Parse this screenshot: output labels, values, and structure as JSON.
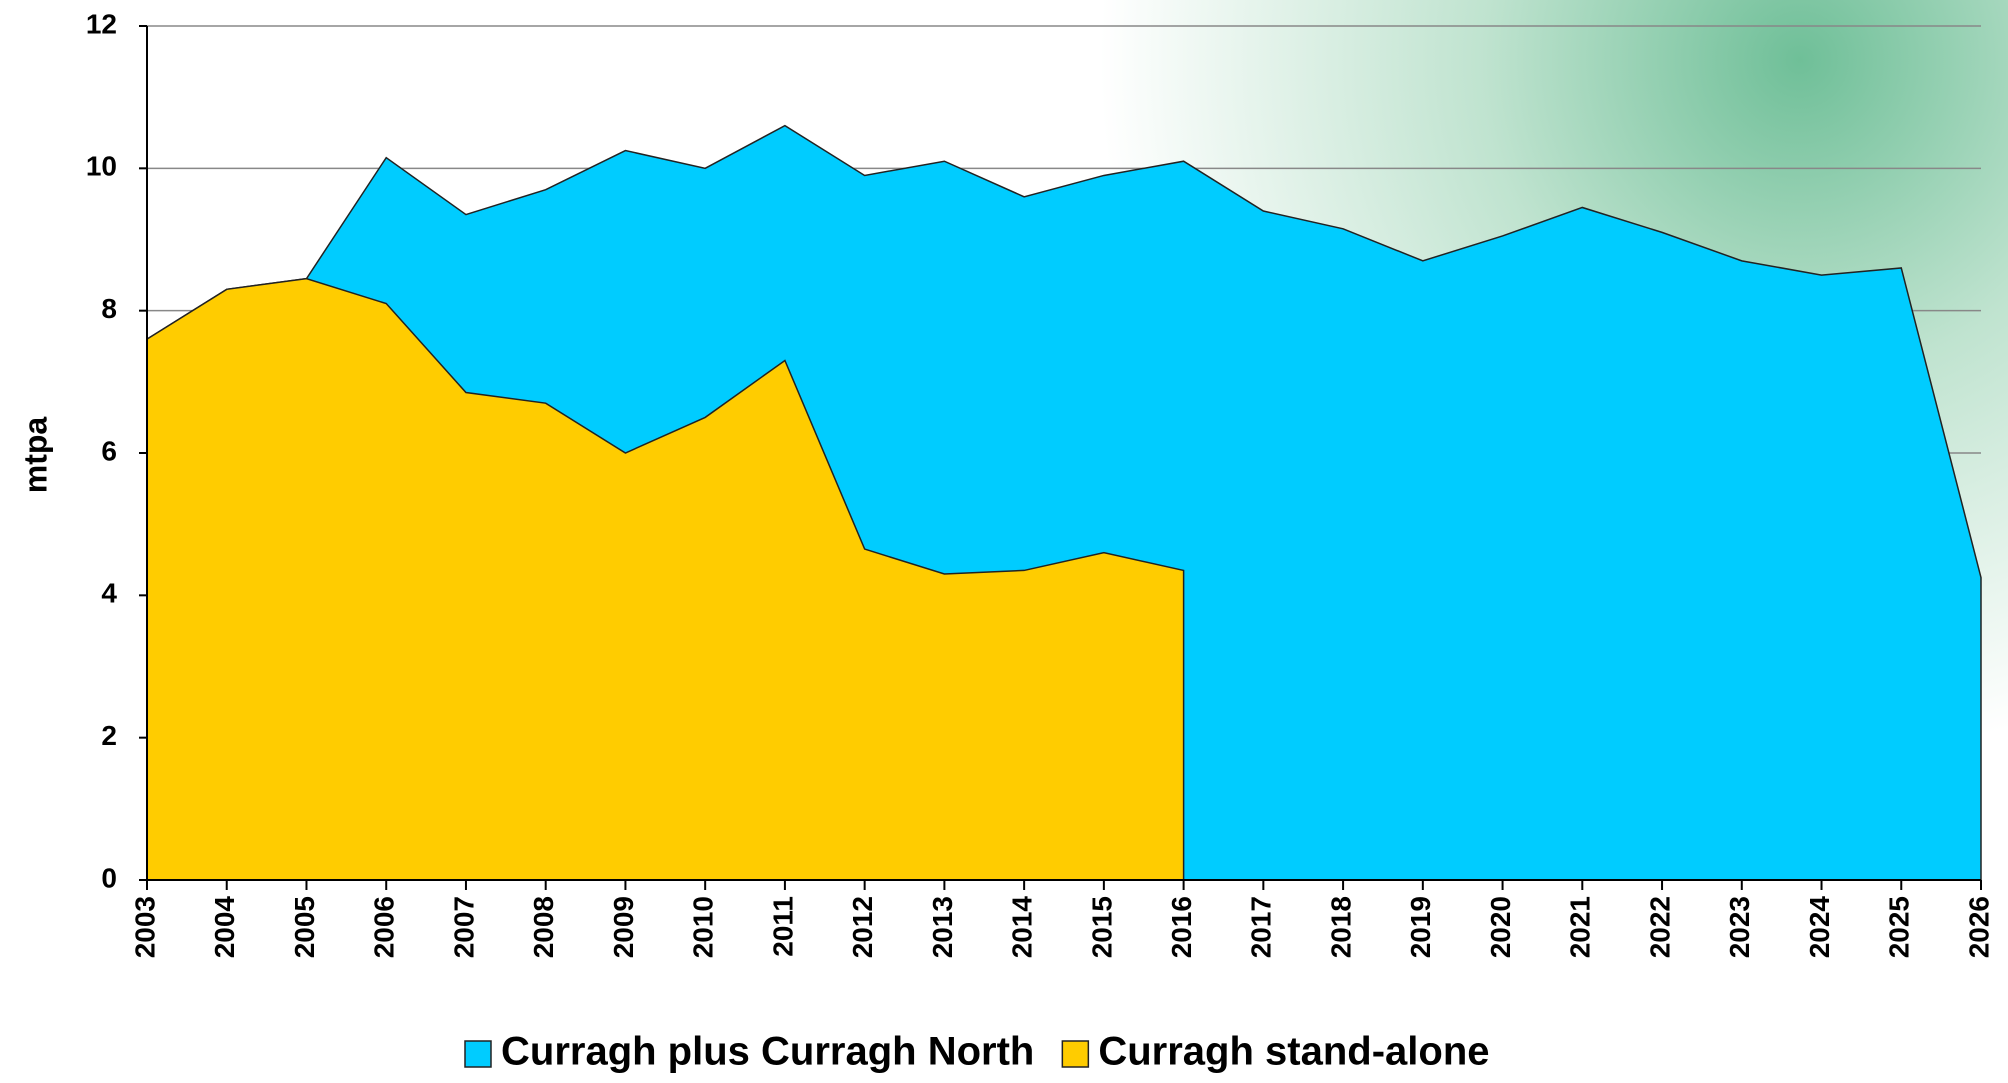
{
  "chart_data": {
    "type": "area",
    "categories": [
      "2003",
      "2004",
      "2005",
      "2006",
      "2007",
      "2008",
      "2009",
      "2010",
      "2011",
      "2012",
      "2013",
      "2014",
      "2015",
      "2016",
      "2017",
      "2018",
      "2019",
      "2020",
      "2021",
      "2022",
      "2023",
      "2024",
      "2025",
      "2026"
    ],
    "series": [
      {
        "name": "Curragh plus Curragh North",
        "color": "#00ccff",
        "values": [
          7.6,
          8.3,
          8.45,
          10.15,
          9.35,
          9.7,
          10.25,
          10.0,
          10.6,
          9.9,
          10.1,
          9.6,
          9.9,
          10.1,
          9.4,
          9.15,
          8.7,
          9.05,
          9.45,
          9.1,
          8.7,
          8.5,
          8.6,
          4.25
        ]
      },
      {
        "name": "Curragh stand-alone",
        "color": "#ffcc00",
        "values": [
          7.6,
          8.3,
          8.45,
          8.1,
          6.85,
          6.7,
          6.0,
          6.5,
          7.3,
          4.65,
          4.3,
          4.35,
          4.6,
          4.35,
          null,
          null,
          null,
          null,
          null,
          null,
          null,
          null,
          null,
          null
        ]
      }
    ],
    "y_label": "mtpa",
    "ylim": [
      0,
      12
    ],
    "yticks": [
      0,
      2,
      4,
      6,
      8,
      10,
      12
    ],
    "grid": true
  }
}
